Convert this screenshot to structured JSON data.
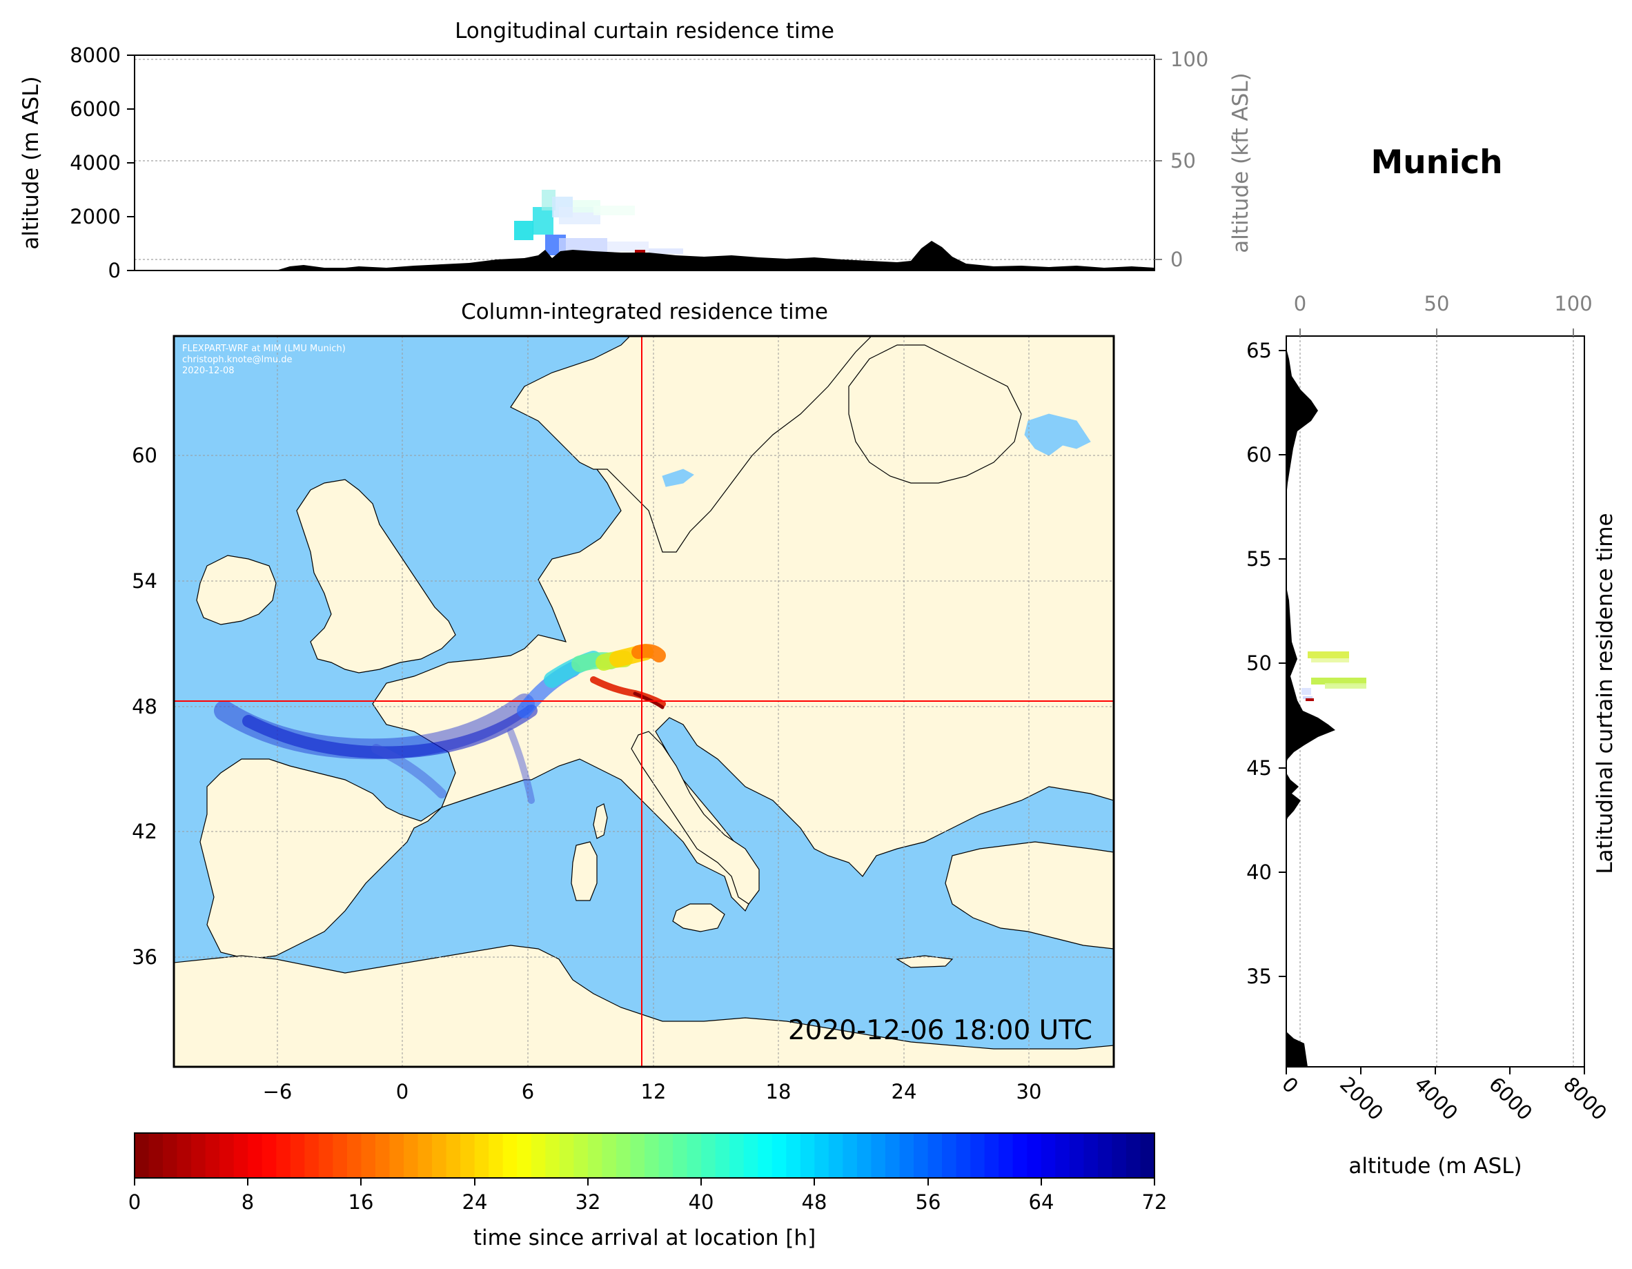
{
  "location": "Munich",
  "top_panel": {
    "title": "Longitudinal curtain residence time",
    "ylabel": "altitude (m ASL)",
    "ylabel_right": "altitude (kft ASL)",
    "yticks": [
      "0",
      "2000",
      "4000",
      "6000",
      "8000"
    ],
    "yticks_right": [
      "0",
      "50",
      "100"
    ]
  },
  "map_panel": {
    "title": "Column-integrated residence time",
    "credit_lines": [
      "FLEXPART-WRF at MIM (LMU Munich)",
      "christoph.knote@lmu.de",
      "2020-12-08"
    ],
    "timestamp": "2020-12-06 18:00 UTC",
    "xticks": [
      "−6",
      "0",
      "6",
      "12",
      "18",
      "24",
      "30"
    ],
    "yticks": [
      "36",
      "42",
      "48",
      "54",
      "60"
    ],
    "crosshair": {
      "lon": 11.6,
      "lat": 48.1
    },
    "colors": {
      "ocean": "#87cefa",
      "land": "#fff8dc",
      "crosshair": "#ff0000"
    }
  },
  "side_panel": {
    "ylabel": "Latitudinal curtain residence time",
    "xlabel": "altitude (m ASL)",
    "xticks": [
      "0",
      "2000",
      "4000",
      "6000",
      "8000"
    ],
    "xticks_top": [
      "0",
      "50",
      "100"
    ],
    "yticks": [
      "35",
      "40",
      "45",
      "50",
      "55",
      "60",
      "65"
    ]
  },
  "colorbar": {
    "label": "time since arrival at location [h]",
    "ticks": [
      "0",
      "8",
      "16",
      "24",
      "32",
      "40",
      "48",
      "56",
      "64",
      "72"
    ],
    "colormap": "jet_r"
  }
}
